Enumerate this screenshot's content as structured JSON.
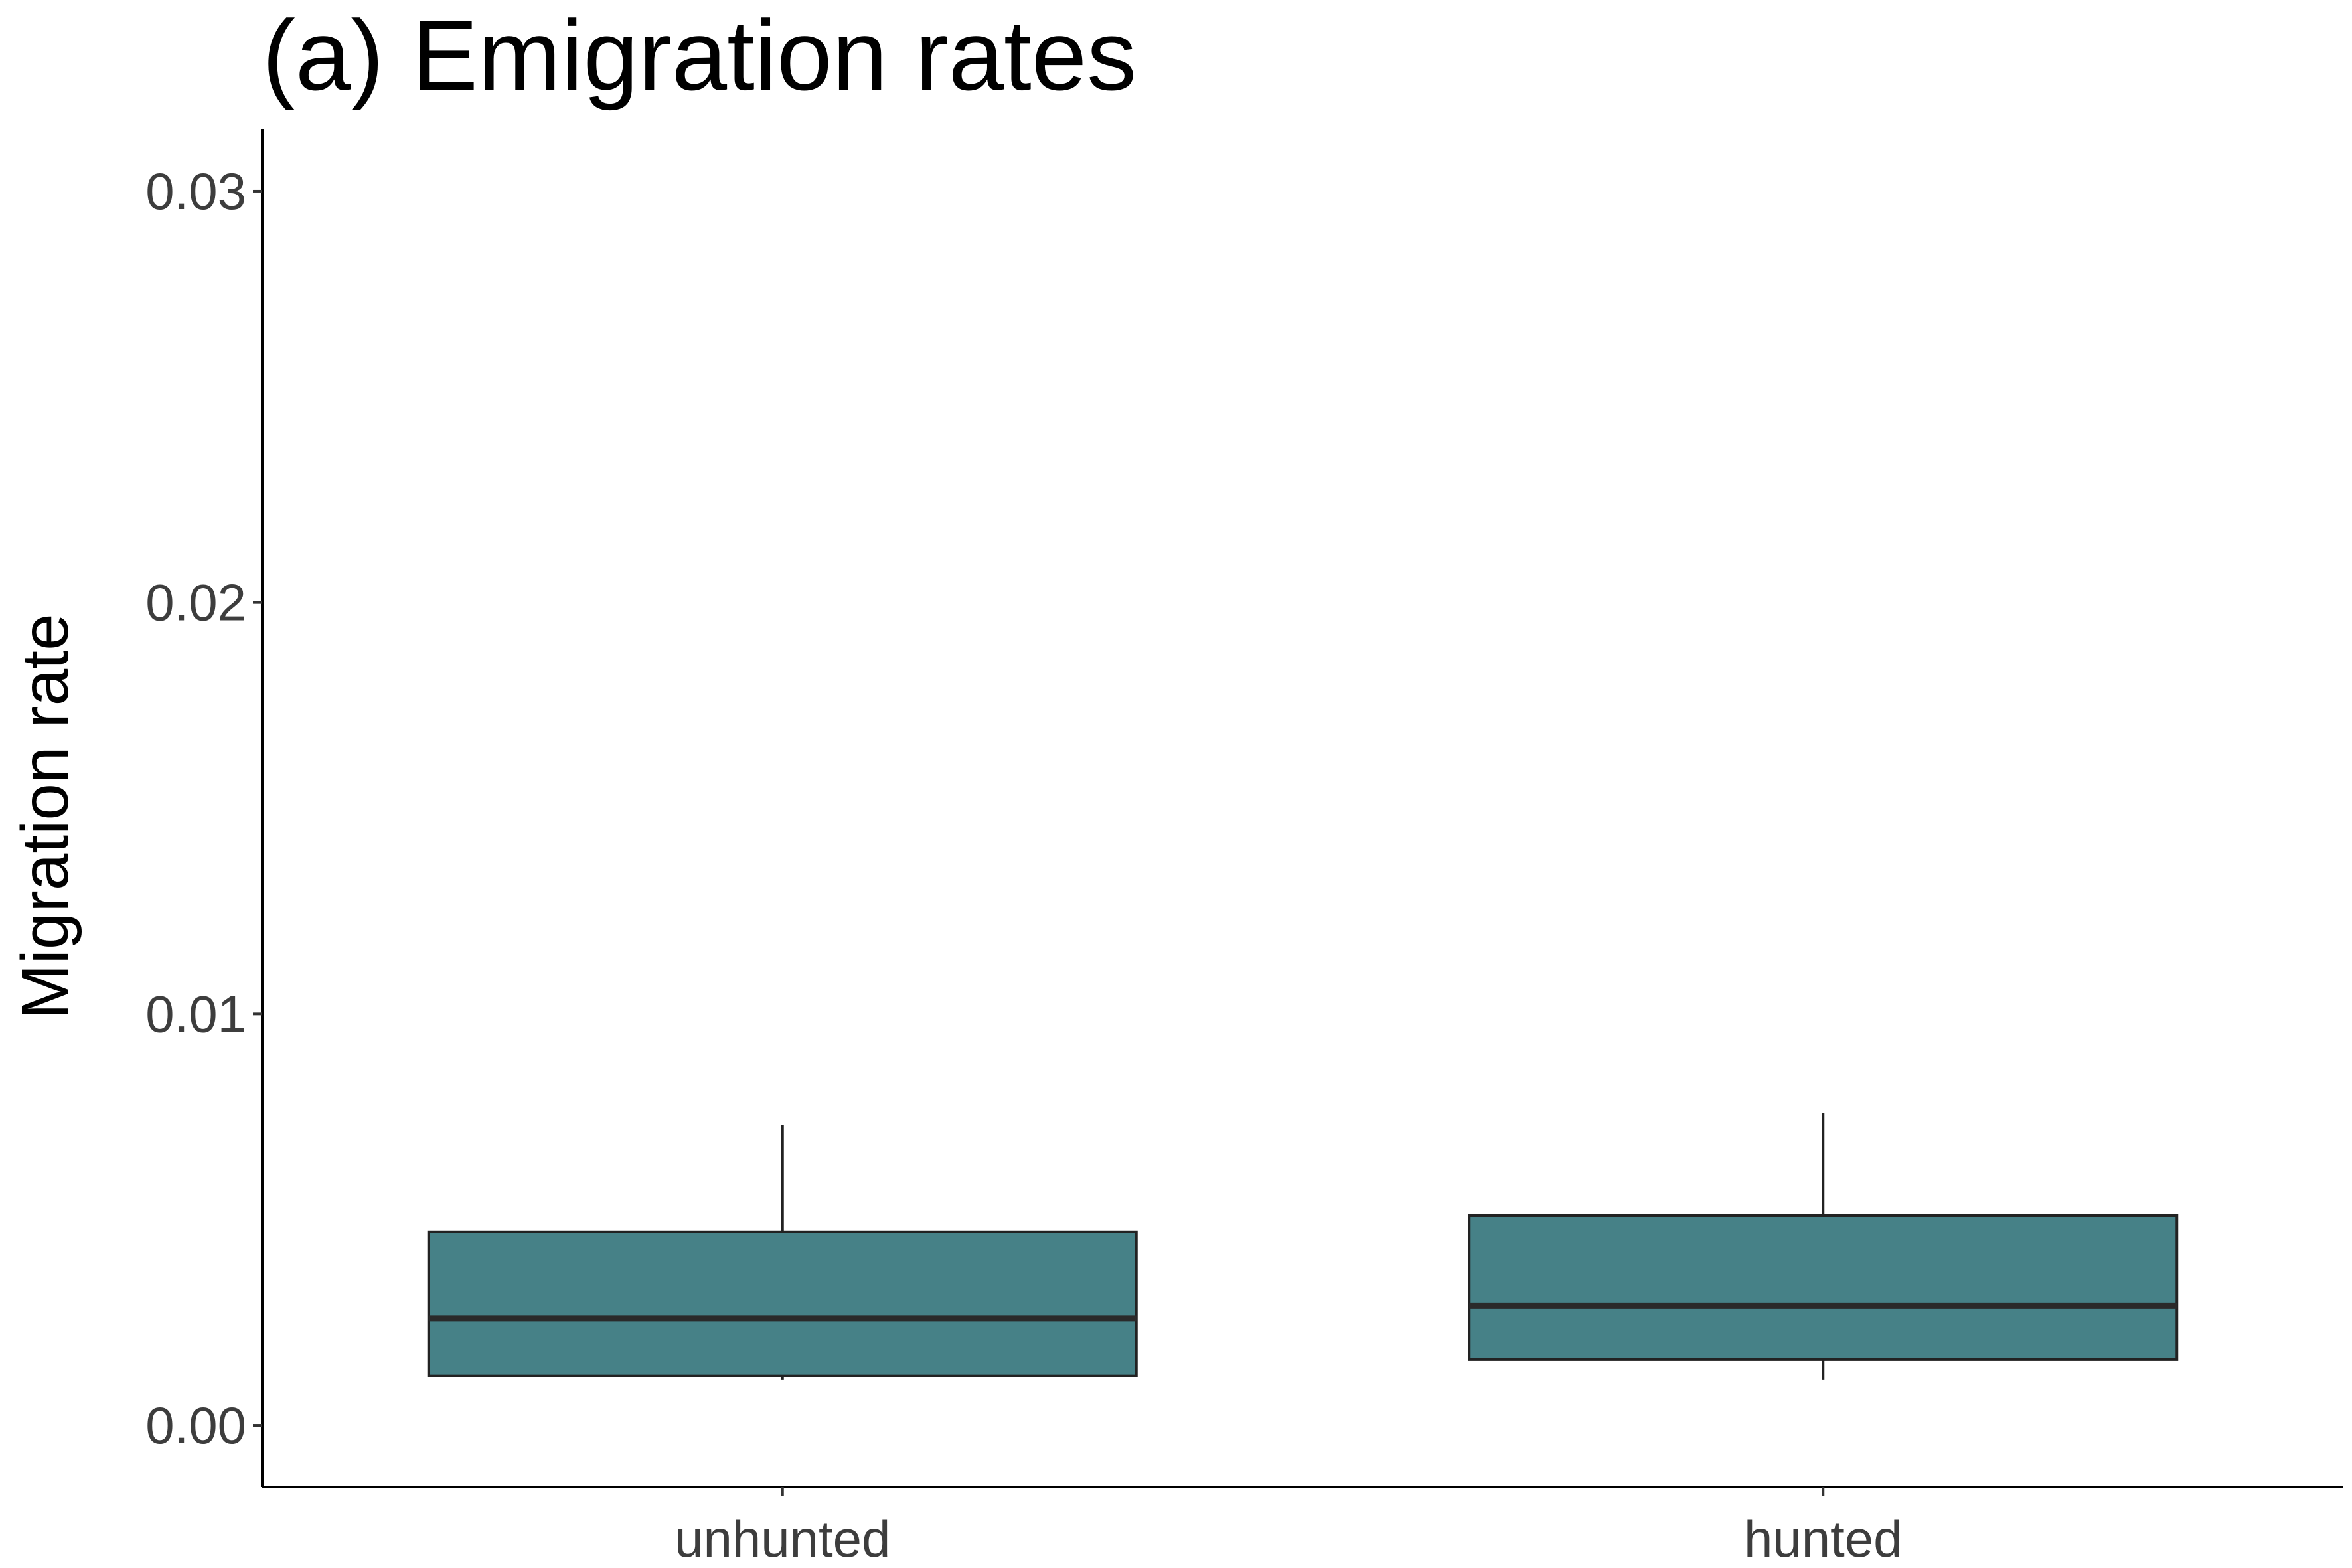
{
  "chart_data": {
    "type": "boxplot",
    "title": "(a) Emigration rates",
    "xlabel": "",
    "ylabel": "Migration rate",
    "ylim": [
      -0.0015,
      0.0315
    ],
    "yticks": [
      0.0,
      0.01,
      0.02,
      0.03
    ],
    "ytick_labels": [
      "0.00",
      "0.01",
      "0.02",
      "0.03"
    ],
    "grid": false,
    "legend": "none",
    "box_fill": "#468187",
    "box_stroke": "#222222",
    "categories": [
      "unhunted",
      "hunted"
    ],
    "boxes": [
      {
        "category": "unhunted",
        "whisker_low": 0.0011,
        "q1": 0.0012,
        "median": 0.0026,
        "q3": 0.0047,
        "whisker_high": 0.0073
      },
      {
        "category": "hunted",
        "whisker_low": 0.0011,
        "q1": 0.0016,
        "median": 0.0029,
        "q3": 0.0051,
        "whisker_high": 0.0076
      }
    ]
  }
}
